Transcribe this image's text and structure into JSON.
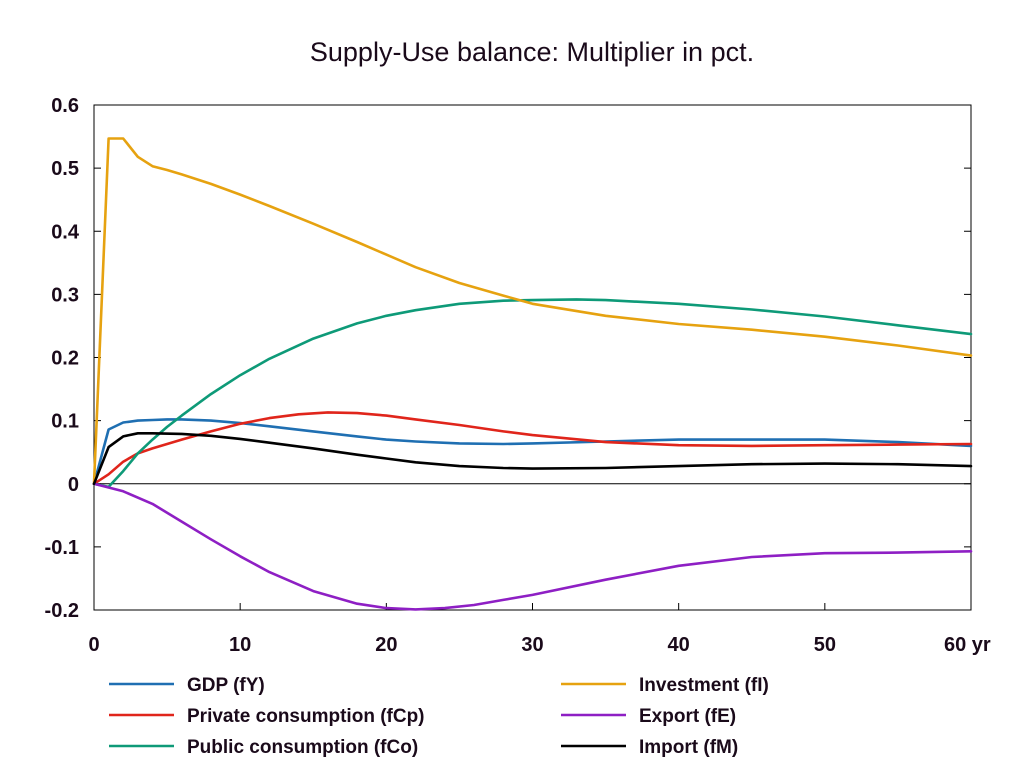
{
  "chart_data": {
    "type": "line",
    "title": "Supply-Use balance: Multiplier in pct.",
    "xlabel": "",
    "ylabel": "",
    "xlim": [
      0,
      60
    ],
    "ylim": [
      -0.2,
      0.6
    ],
    "x_ticks": [
      0,
      10,
      20,
      30,
      40,
      50,
      60
    ],
    "x_tick_labels": [
      "0",
      "10",
      "20",
      "30",
      "40",
      "50",
      "60 yr"
    ],
    "y_ticks": [
      -0.2,
      -0.1,
      0,
      0.1,
      0.2,
      0.3,
      0.4,
      0.5,
      0.6
    ],
    "y_tick_labels": [
      "-0.2",
      "-0.1",
      "0",
      "0.1",
      "0.2",
      "0.3",
      "0.4",
      "0.5",
      "0.6"
    ],
    "grid": false,
    "legend_position": "bottom",
    "series": [
      {
        "name": "GDP (fY)",
        "color": "#1f6fb2",
        "x": [
          0,
          1,
          2,
          3,
          4,
          5,
          6,
          8,
          10,
          12,
          15,
          18,
          20,
          22,
          25,
          28,
          30,
          35,
          40,
          45,
          50,
          55,
          60
        ],
        "y": [
          0,
          0.086,
          0.097,
          0.1,
          0.101,
          0.102,
          0.102,
          0.1,
          0.096,
          0.091,
          0.083,
          0.075,
          0.07,
          0.067,
          0.064,
          0.063,
          0.064,
          0.067,
          0.07,
          0.07,
          0.07,
          0.066,
          0.06
        ]
      },
      {
        "name": "Private consumption (fCp)",
        "color": "#e0251b",
        "x": [
          0,
          1,
          2,
          3,
          4,
          6,
          8,
          10,
          12,
          14,
          16,
          18,
          20,
          22,
          25,
          28,
          30,
          35,
          40,
          45,
          50,
          55,
          60
        ],
        "y": [
          0,
          0.015,
          0.035,
          0.048,
          0.056,
          0.07,
          0.083,
          0.095,
          0.104,
          0.11,
          0.113,
          0.112,
          0.108,
          0.102,
          0.093,
          0.083,
          0.077,
          0.066,
          0.061,
          0.06,
          0.061,
          0.062,
          0.063
        ]
      },
      {
        "name": "Public consumption (fCo)",
        "color": "#0e9a78",
        "x": [
          0,
          1,
          2,
          3,
          4,
          5,
          6,
          8,
          10,
          12,
          15,
          18,
          20,
          22,
          25,
          28,
          30,
          33,
          35,
          40,
          45,
          50,
          55,
          60
        ],
        "y": [
          0,
          -0.005,
          0.02,
          0.048,
          0.07,
          0.09,
          0.108,
          0.142,
          0.172,
          0.198,
          0.23,
          0.254,
          0.266,
          0.275,
          0.285,
          0.29,
          0.291,
          0.292,
          0.291,
          0.285,
          0.276,
          0.265,
          0.251,
          0.237
        ]
      },
      {
        "name": "Investment (fI)",
        "color": "#e6a210",
        "x": [
          0,
          1,
          2,
          3,
          4,
          5,
          6,
          8,
          10,
          12,
          15,
          18,
          20,
          22,
          25,
          28,
          30,
          35,
          40,
          45,
          50,
          55,
          60
        ],
        "y": [
          0,
          0.547,
          0.547,
          0.518,
          0.503,
          0.497,
          0.49,
          0.475,
          0.458,
          0.44,
          0.412,
          0.383,
          0.363,
          0.343,
          0.318,
          0.298,
          0.285,
          0.266,
          0.253,
          0.244,
          0.233,
          0.219,
          0.203
        ]
      },
      {
        "name": "Export (fE)",
        "color": "#8e1fc4",
        "x": [
          0,
          2,
          4,
          6,
          8,
          10,
          12,
          15,
          18,
          20,
          22,
          24,
          26,
          28,
          30,
          35,
          40,
          45,
          50,
          55,
          60
        ],
        "y": [
          0,
          -0.012,
          -0.032,
          -0.06,
          -0.088,
          -0.115,
          -0.14,
          -0.17,
          -0.19,
          -0.197,
          -0.199,
          -0.197,
          -0.192,
          -0.184,
          -0.176,
          -0.152,
          -0.13,
          -0.116,
          -0.11,
          -0.109,
          -0.107
        ]
      },
      {
        "name": "Import (fM)",
        "color": "#000000",
        "x": [
          0,
          1,
          2,
          3,
          4,
          6,
          8,
          10,
          12,
          15,
          18,
          20,
          22,
          25,
          28,
          30,
          35,
          40,
          45,
          50,
          55,
          60
        ],
        "y": [
          0,
          0.058,
          0.075,
          0.08,
          0.08,
          0.079,
          0.076,
          0.071,
          0.065,
          0.056,
          0.046,
          0.04,
          0.034,
          0.028,
          0.025,
          0.024,
          0.025,
          0.028,
          0.031,
          0.032,
          0.031,
          0.028
        ]
      }
    ]
  }
}
